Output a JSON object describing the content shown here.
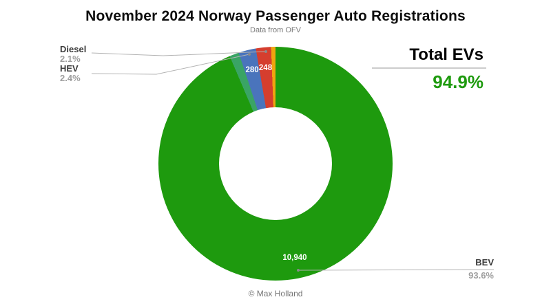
{
  "header": {
    "title": "November 2024 Norway Passenger Auto Registrations",
    "subtitle": "Data from OFV"
  },
  "chart_data": {
    "type": "pie",
    "style": "donut",
    "title": "November 2024 Norway Passenger Auto Registrations",
    "subtitle": "Data from OFV",
    "hole_ratio": 0.48,
    "start_angle_deg": 0,
    "direction": "clockwise",
    "slices": [
      {
        "label": "BEV",
        "pct": 93.6,
        "value": 10940,
        "value_label": "10,940",
        "color": "#1e9a0e"
      },
      {
        "label": "",
        "pct": 1.3,
        "color": "#3aa465"
      },
      {
        "label": "HEV",
        "pct": 2.4,
        "value": 280,
        "value_label": "280",
        "color": "#4a74bc"
      },
      {
        "label": "Diesel",
        "pct": 2.1,
        "value": 248,
        "value_label": "248",
        "color": "#d53e2e"
      },
      {
        "label": "",
        "pct": 0.6,
        "color": "#f0a40f"
      }
    ]
  },
  "callouts": {
    "diesel": {
      "name": "Diesel",
      "pct": "2.1%"
    },
    "hev": {
      "name": "HEV",
      "pct": "2.4%"
    },
    "bev": {
      "name": "BEV",
      "pct": "93.6%"
    },
    "total": {
      "name": "Total EVs",
      "pct": "94.9%"
    }
  },
  "footer": {
    "credit": "© Max Holland"
  },
  "colors": {
    "accent_green": "#1e9a0e",
    "label_dark": "#3b3b3b",
    "label_gray": "#9e9e9e",
    "leader_line": "#b3b3b3"
  }
}
